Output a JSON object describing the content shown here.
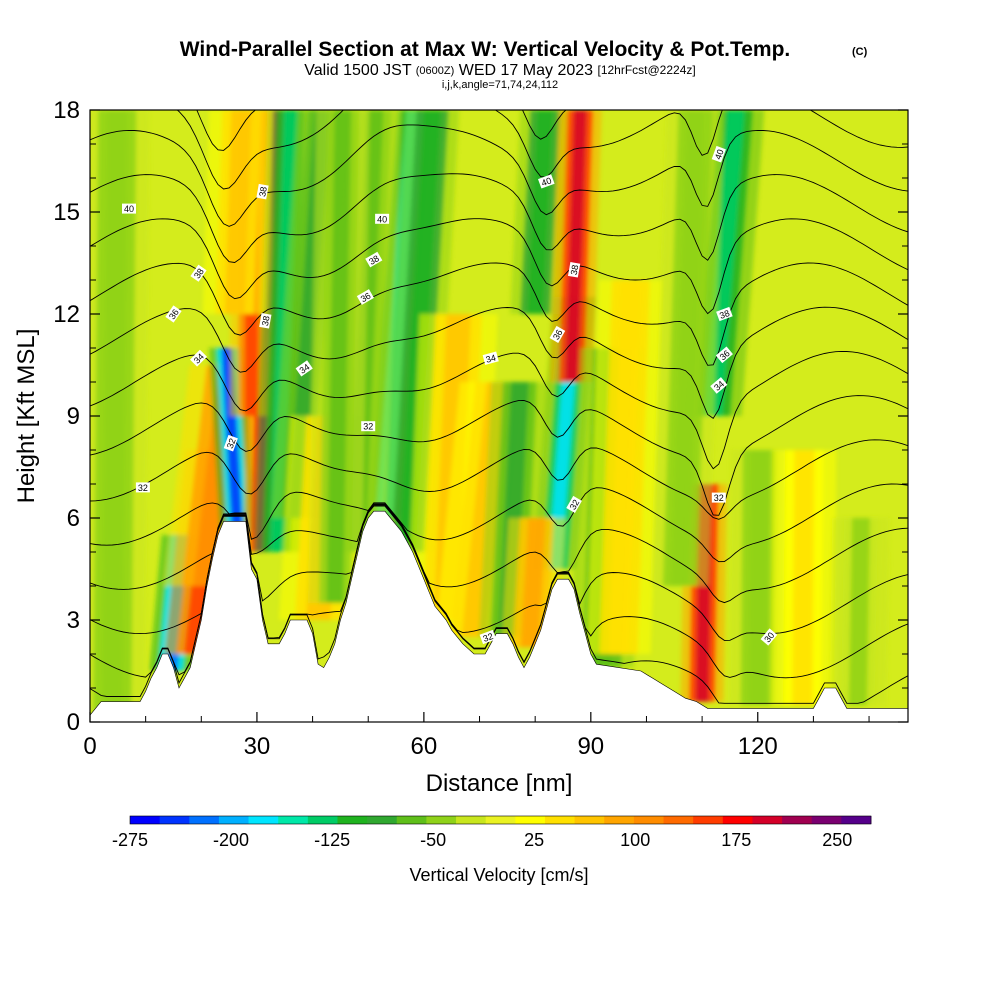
{
  "chart_data": {
    "type": "heatmap",
    "title": "Wind-Parallel Section at Max W: Vertical Velocity & Pot.Temp.",
    "title_mark": "(C)",
    "subtitle": {
      "valid": "Valid 1500 JST",
      "utc": "(0600Z)",
      "date": "WED 17 May 2023",
      "fcst": "[12hrFcst@2224z]"
    },
    "subtitle2": "i,j,k,angle=71,74,24,112",
    "xlabel": "Distance [nm]",
    "ylabel": "Height [Kft MSL]",
    "xlim": [
      0,
      147
    ],
    "ylim": [
      0,
      18
    ],
    "x_ticks": [
      0,
      30,
      60,
      90,
      120
    ],
    "x_tick_labels": [
      "0",
      "30",
      "60",
      "90",
      "120"
    ],
    "y_ticks": [
      0,
      3,
      6,
      9,
      12,
      15,
      18
    ],
    "y_tick_labels": [
      "0",
      "3",
      "6",
      "9",
      "12",
      "15",
      "18"
    ],
    "colorbar": {
      "label": "Vertical Velocity [cm/s]",
      "min": -275,
      "max": 275,
      "tick_values": [
        -275,
        -200,
        -125,
        -50,
        25,
        100,
        175,
        250
      ],
      "tick_labels": [
        "-275",
        "-200",
        "-125",
        "-50",
        "25",
        "100",
        "175",
        "250"
      ],
      "colors": [
        "#0000ff",
        "#0033ff",
        "#0070ff",
        "#00b0ff",
        "#00e5ff",
        "#00e8a8",
        "#00cc66",
        "#1fb31f",
        "#30a830",
        "#5fbf1a",
        "#8fd219",
        "#c8e61e",
        "#eaf222",
        "#ffff00",
        "#ffe000",
        "#ffc400",
        "#ffa500",
        "#ff8c00",
        "#ff6a00",
        "#ff3c00",
        "#ff0000",
        "#d40028",
        "#a00050",
        "#7a0070",
        "#55008a"
      ]
    },
    "terrain_profile": [
      [
        0,
        0.2
      ],
      [
        2,
        0.6
      ],
      [
        9,
        0.6
      ],
      [
        10,
        0.9
      ],
      [
        11,
        1.3
      ],
      [
        12,
        1.6
      ],
      [
        13,
        2.0
      ],
      [
        14,
        2.0
      ],
      [
        15,
        1.6
      ],
      [
        16,
        1.0
      ],
      [
        17,
        1.3
      ],
      [
        18,
        1.6
      ],
      [
        19,
        2.3
      ],
      [
        20,
        3.0
      ],
      [
        21,
        4.0
      ],
      [
        22,
        4.8
      ],
      [
        23,
        5.5
      ],
      [
        24,
        5.9
      ],
      [
        28,
        5.9
      ],
      [
        29,
        4.5
      ],
      [
        30,
        4.2
      ],
      [
        31,
        3.0
      ],
      [
        32,
        2.3
      ],
      [
        34,
        2.3
      ],
      [
        35,
        2.6
      ],
      [
        36,
        3.0
      ],
      [
        39,
        3.0
      ],
      [
        40,
        2.6
      ],
      [
        41,
        1.7
      ],
      [
        42,
        1.6
      ],
      [
        43,
        1.9
      ],
      [
        44,
        2.3
      ],
      [
        45,
        3.0
      ],
      [
        46,
        3.5
      ],
      [
        47,
        4.2
      ],
      [
        48,
        4.9
      ],
      [
        49,
        5.6
      ],
      [
        50,
        6.0
      ],
      [
        51,
        6.2
      ],
      [
        53,
        6.2
      ],
      [
        54,
        6.0
      ],
      [
        56,
        5.6
      ],
      [
        57,
        5.3
      ],
      [
        58,
        5.0
      ],
      [
        59,
        4.6
      ],
      [
        60,
        4.2
      ],
      [
        61,
        3.8
      ],
      [
        62,
        3.4
      ],
      [
        63,
        3.2
      ],
      [
        64,
        3.0
      ],
      [
        65,
        2.7
      ],
      [
        67,
        2.3
      ],
      [
        69,
        2.0
      ],
      [
        71,
        2.0
      ],
      [
        72,
        2.3
      ],
      [
        73,
        2.6
      ],
      [
        75,
        2.6
      ],
      [
        76,
        2.3
      ],
      [
        77,
        1.9
      ],
      [
        78,
        1.6
      ],
      [
        79,
        1.9
      ],
      [
        80,
        2.3
      ],
      [
        81,
        2.7
      ],
      [
        82,
        3.3
      ],
      [
        83,
        3.9
      ],
      [
        84,
        4.2
      ],
      [
        86,
        4.2
      ],
      [
        87,
        3.9
      ],
      [
        88,
        3.2
      ],
      [
        89,
        2.6
      ],
      [
        90,
        2.0
      ],
      [
        91,
        1.7
      ],
      [
        99,
        1.5
      ],
      [
        101,
        1.3
      ],
      [
        103,
        1.1
      ],
      [
        105,
        0.9
      ],
      [
        107,
        0.7
      ],
      [
        109,
        0.6
      ],
      [
        111,
        0.4
      ],
      [
        130,
        0.4
      ],
      [
        131,
        0.7
      ],
      [
        132,
        1.0
      ],
      [
        134,
        1.0
      ],
      [
        135,
        0.7
      ],
      [
        136,
        0.4
      ],
      [
        147,
        0.4
      ]
    ],
    "velocity_features": [
      {
        "x": 14.5,
        "zb": 1.2,
        "zt": 5.5,
        "slope": 0.55,
        "w": -230,
        "width": 1.2
      },
      {
        "x": 18.5,
        "zb": 2.0,
        "zt": 8.0,
        "slope": 0.65,
        "w": 160,
        "width": 1.6
      },
      {
        "x": 21.0,
        "zb": 4.0,
        "zt": 10.5,
        "slope": 0.7,
        "w": 110,
        "width": 2.4
      },
      {
        "x": 26.5,
        "zb": 4.3,
        "zt": 11.0,
        "slope": -0.35,
        "w": -240,
        "width": 1.0
      },
      {
        "x": 31.0,
        "zb": 5.0,
        "zt": 18.0,
        "slope": 0.15,
        "w": 240,
        "width": 1.1
      },
      {
        "x": 29.0,
        "zb": 9.0,
        "zt": 18.0,
        "slope": 0.0,
        "w": 160,
        "width": 1.2
      },
      {
        "x": 33.5,
        "zb": 5.0,
        "zt": 18.0,
        "slope": 0.2,
        "w": -140,
        "width": 1.3
      },
      {
        "x": 37.0,
        "zb": 6.0,
        "zt": 18.0,
        "slope": 0.4,
        "w": -95,
        "width": 1.4
      },
      {
        "x": 26.0,
        "zb": 12.0,
        "zt": 18.0,
        "slope": 0.2,
        "w": 70,
        "width": 1.8
      },
      {
        "x": 41.0,
        "zb": 3.0,
        "zt": 9.0,
        "slope": 0.35,
        "w": 60,
        "width": 2.2
      },
      {
        "x": 53.0,
        "zb": 6.0,
        "zt": 18.0,
        "slope": 0.45,
        "w": -150,
        "width": 1.6
      },
      {
        "x": 57.0,
        "zb": 5.0,
        "zt": 18.0,
        "slope": 0.35,
        "w": -110,
        "width": 1.5
      },
      {
        "x": 48.0,
        "zb": 5.0,
        "zt": 18.0,
        "slope": 0.25,
        "w": -70,
        "width": 1.5
      },
      {
        "x": 44.0,
        "zb": 3.5,
        "zt": 18.0,
        "slope": 0.1,
        "w": -60,
        "width": 1.5
      },
      {
        "x": 64.0,
        "zb": 3.0,
        "zt": 12.0,
        "slope": 0.25,
        "w": 70,
        "width": 2.2
      },
      {
        "x": 69.0,
        "zb": 2.5,
        "zt": 10.0,
        "slope": 0.6,
        "w": 70,
        "width": 2.2
      },
      {
        "x": 83.5,
        "zb": 4.5,
        "zt": 12.5,
        "slope": 0.45,
        "w": -170,
        "width": 1.2
      },
      {
        "x": 80.0,
        "zb": 12.0,
        "zt": 18.0,
        "slope": 0.3,
        "w": -110,
        "width": 1.4
      },
      {
        "x": 86.5,
        "zb": 10.0,
        "zt": 18.0,
        "slope": 0.2,
        "w": 200,
        "width": 1.2
      },
      {
        "x": 75.0,
        "zb": 2.5,
        "zt": 10.0,
        "slope": 0.3,
        "w": -90,
        "width": 1.6
      },
      {
        "x": 79.0,
        "zb": 2.2,
        "zt": 6.0,
        "slope": 0.35,
        "w": 80,
        "width": 1.6
      },
      {
        "x": 92.0,
        "zb": 1.6,
        "zt": 11.0,
        "slope": 0.2,
        "w": -75,
        "width": 1.8
      },
      {
        "x": 95.0,
        "zb": 2.0,
        "zt": 13.0,
        "slope": 0.2,
        "w": 45,
        "width": 1.8
      },
      {
        "x": 110.0,
        "zb": 0.6,
        "zt": 7.0,
        "slope": 0.1,
        "w": 200,
        "width": 1.2
      },
      {
        "x": 112.0,
        "zb": 9.0,
        "zt": 18.0,
        "slope": 0.45,
        "w": -140,
        "width": 1.6
      },
      {
        "x": 106.0,
        "zb": 4.0,
        "zt": 18.0,
        "slope": 0.2,
        "w": -50,
        "width": 1.6
      },
      {
        "x": 120.0,
        "zb": 0.5,
        "zt": 8.0,
        "slope": 0.05,
        "w": -55,
        "width": 1.6
      },
      {
        "x": 128.0,
        "zb": 0.5,
        "zt": 8.0,
        "slope": 0.05,
        "w": 40,
        "width": 1.8
      },
      {
        "x": 138.0,
        "zb": 0.5,
        "zt": 6.0,
        "slope": 0.1,
        "w": -40,
        "width": 1.6
      },
      {
        "x": 4.0,
        "zb": 0.3,
        "zt": 18.0,
        "slope": 0.05,
        "w": -45,
        "width": 1.8
      }
    ],
    "theta_levels": [
      28,
      29,
      30,
      31,
      32,
      33,
      34,
      35,
      36,
      37,
      38,
      39,
      40,
      41,
      42
    ],
    "theta_labels": [
      {
        "x": 7,
        "z": 15.1,
        "text": "40",
        "angle": 0
      },
      {
        "x": 19.5,
        "z": 13.2,
        "text": "38",
        "angle": -55
      },
      {
        "x": 15,
        "z": 12.0,
        "text": "36",
        "angle": -55
      },
      {
        "x": 19.5,
        "z": 10.7,
        "text": "34",
        "angle": -45
      },
      {
        "x": 25.3,
        "z": 8.2,
        "text": "32",
        "angle": -70
      },
      {
        "x": 9.5,
        "z": 6.9,
        "text": "32",
        "angle": 0
      },
      {
        "x": 31.0,
        "z": 15.6,
        "text": "38",
        "angle": -80
      },
      {
        "x": 31.5,
        "z": 11.8,
        "text": "38",
        "angle": -80
      },
      {
        "x": 38.5,
        "z": 10.4,
        "text": "34",
        "angle": -35
      },
      {
        "x": 52.5,
        "z": 14.8,
        "text": "40",
        "angle": 0
      },
      {
        "x": 51.0,
        "z": 13.6,
        "text": "38",
        "angle": -30
      },
      {
        "x": 49.5,
        "z": 12.5,
        "text": "36",
        "angle": -30
      },
      {
        "x": 50.0,
        "z": 8.7,
        "text": "32",
        "angle": 0
      },
      {
        "x": 72.0,
        "z": 10.7,
        "text": "34",
        "angle": -15
      },
      {
        "x": 82.0,
        "z": 15.9,
        "text": "40",
        "angle": -20
      },
      {
        "x": 87.0,
        "z": 13.3,
        "text": "38",
        "angle": -80
      },
      {
        "x": 84.0,
        "z": 11.4,
        "text": "36",
        "angle": -60
      },
      {
        "x": 87.0,
        "z": 6.4,
        "text": "32",
        "angle": -60
      },
      {
        "x": 71.5,
        "z": 2.5,
        "text": "32",
        "angle": -20
      },
      {
        "x": 113.0,
        "z": 16.7,
        "text": "40",
        "angle": -70
      },
      {
        "x": 114.0,
        "z": 12.0,
        "text": "38",
        "angle": -20
      },
      {
        "x": 114.0,
        "z": 10.8,
        "text": "36",
        "angle": -40
      },
      {
        "x": 113.0,
        "z": 9.9,
        "text": "34",
        "angle": -40
      },
      {
        "x": 113.0,
        "z": 6.6,
        "text": "32",
        "angle": 0
      },
      {
        "x": 122.0,
        "z": 2.5,
        "text": "30",
        "angle": -50
      }
    ]
  }
}
